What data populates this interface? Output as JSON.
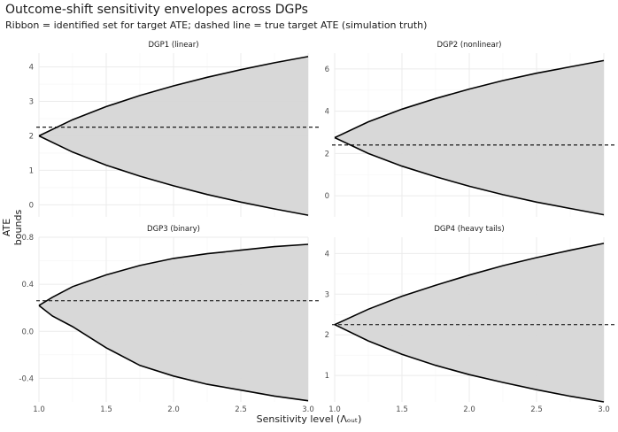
{
  "title": "Outcome-shift sensitivity envelopes across DGPs",
  "subtitle": "Ribbon = identified set for target ATE; dashed line = true target ATE (simulation truth)",
  "xlabel": "Sensitivity level (Λₒᵤₜ)",
  "ylabel": "ATE bounds",
  "colors": {
    "ribbon": "#d6d6d6",
    "line": "#000000",
    "grid_major": "#ebebeb",
    "grid_minor": "#f5f5f5"
  },
  "chart_data": [
    {
      "type": "area",
      "panel": "DGP1 (linear)",
      "x": [
        1.0,
        1.25,
        1.5,
        1.75,
        2.0,
        2.25,
        2.5,
        2.75,
        3.0
      ],
      "upper": [
        2.0,
        2.47,
        2.85,
        3.17,
        3.45,
        3.7,
        3.92,
        4.12,
        4.3
      ],
      "lower": [
        2.0,
        1.53,
        1.15,
        0.83,
        0.55,
        0.3,
        0.08,
        -0.12,
        -0.3
      ],
      "truth": 2.25,
      "xlim": [
        1.0,
        3.0
      ],
      "ylim": [
        -0.35,
        4.4
      ],
      "yticks": [
        0,
        1,
        2,
        3,
        4
      ],
      "xticks": [
        1.0,
        1.5,
        2.0,
        2.5,
        3.0
      ],
      "grid": true
    },
    {
      "type": "area",
      "panel": "DGP2 (nonlinear)",
      "x": [
        1.0,
        1.25,
        1.5,
        1.75,
        2.0,
        2.25,
        2.5,
        2.75,
        3.0
      ],
      "upper": [
        2.75,
        3.5,
        4.1,
        4.6,
        5.05,
        5.45,
        5.8,
        6.1,
        6.4
      ],
      "lower": [
        2.75,
        2.0,
        1.4,
        0.9,
        0.45,
        0.05,
        -0.3,
        -0.6,
        -0.9
      ],
      "truth": 2.4,
      "xlim": [
        1.0,
        3.0
      ],
      "ylim": [
        -1.0,
        6.75
      ],
      "yticks": [
        0,
        2,
        4,
        6
      ],
      "xticks": [
        1.0,
        1.5,
        2.0,
        2.5,
        3.0
      ],
      "grid": true
    },
    {
      "type": "area",
      "panel": "DGP3 (binary)",
      "x": [
        1.0,
        1.1,
        1.25,
        1.5,
        1.75,
        2.0,
        2.25,
        2.5,
        2.75,
        3.0
      ],
      "upper": [
        0.22,
        0.29,
        0.38,
        0.48,
        0.56,
        0.62,
        0.66,
        0.69,
        0.72,
        0.74
      ],
      "lower": [
        0.22,
        0.13,
        0.04,
        -0.14,
        -0.29,
        -0.38,
        -0.45,
        -0.5,
        -0.55,
        -0.59
      ],
      "truth": 0.26,
      "xlim": [
        1.0,
        3.0
      ],
      "ylim": [
        -0.6,
        0.8
      ],
      "yticks": [
        -0.4,
        0.0,
        0.4,
        0.8
      ],
      "xticks": [
        1.0,
        1.5,
        2.0,
        2.5,
        3.0
      ],
      "grid": true
    },
    {
      "type": "area",
      "panel": "DGP4 (heavy tails)",
      "x": [
        1.0,
        1.25,
        1.5,
        1.75,
        2.0,
        2.25,
        2.5,
        2.75,
        3.0
      ],
      "upper": [
        2.25,
        2.63,
        2.95,
        3.22,
        3.47,
        3.7,
        3.9,
        4.08,
        4.25
      ],
      "lower": [
        2.25,
        1.85,
        1.52,
        1.25,
        1.02,
        0.83,
        0.65,
        0.49,
        0.35
      ],
      "truth": 2.25,
      "xlim": [
        1.0,
        3.0
      ],
      "ylim": [
        0.35,
        4.4
      ],
      "yticks": [
        1,
        2,
        3,
        4
      ],
      "xticks": [
        1.0,
        1.5,
        2.0,
        2.5,
        3.0
      ],
      "grid": true
    }
  ]
}
